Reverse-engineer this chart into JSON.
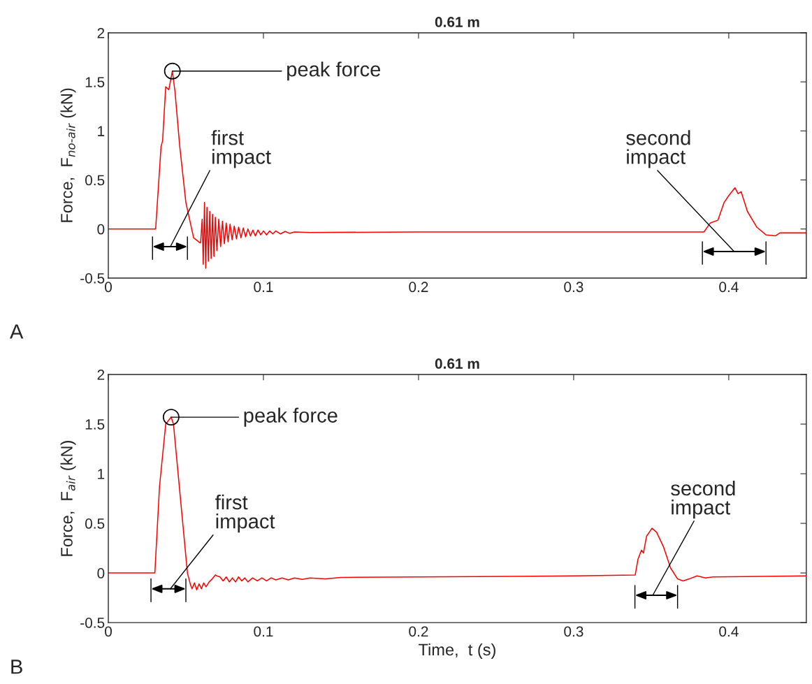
{
  "chart_data": [
    {
      "type": "line",
      "title": "0.61 m",
      "ylabel": "Force,  F$_{no‐air}$ (kN)",
      "xlim": [
        0,
        0.45
      ],
      "ylim": [
        -0.5,
        2
      ],
      "xticks": [
        0,
        0.1,
        0.2,
        0.3,
        0.4
      ],
      "yticks": [
        {
          "value": -0.5,
          "label": "-0.5"
        },
        0,
        0.5,
        1,
        1.5,
        2
      ],
      "grid": false,
      "marker": "none",
      "line_style": "solid",
      "series": [
        {
          "color": "#ff0000",
          "x": [
            0,
            0.0305,
            0.034,
            0.035,
            0.037,
            0.039,
            0.0413,
            0.043,
            0.046,
            0.05,
            0.055,
            0.059,
            0.0595,
            0.0605,
            0.0612,
            0.062,
            0.0628,
            0.0636,
            0.0645,
            0.0654,
            0.0663,
            0.0672,
            0.0681,
            0.069,
            0.07,
            0.0712,
            0.0724,
            0.0736,
            0.0748,
            0.076,
            0.0772,
            0.0785,
            0.0798,
            0.0812,
            0.0826,
            0.084,
            0.0855,
            0.087,
            0.0885,
            0.09,
            0.0916,
            0.0932,
            0.0948,
            0.0965,
            0.0982,
            0.1,
            0.102,
            0.104,
            0.106,
            0.108,
            0.111,
            0.114,
            0.117,
            0.12,
            0.13,
            0.2,
            0.3,
            0.384,
            0.388,
            0.393,
            0.397,
            0.4,
            0.404,
            0.406,
            0.408,
            0.412,
            0.418,
            0.424,
            0.43,
            0.433,
            0.45
          ],
          "values": [
            0,
            0,
            0.84,
            0.9,
            1.45,
            1.42,
            1.61,
            1.4,
            0.85,
            0.27,
            -0.09,
            -0.14,
            -0.14,
            0.1,
            -0.36,
            0.27,
            -0.4,
            0.22,
            -0.33,
            0.18,
            -0.3,
            0.15,
            -0.28,
            0.12,
            -0.22,
            0.1,
            -0.18,
            0.08,
            -0.15,
            0.06,
            -0.13,
            0.05,
            -0.11,
            0.03,
            -0.1,
            0.02,
            -0.09,
            0.01,
            -0.08,
            0,
            -0.07,
            -0.01,
            -0.07,
            -0.01,
            -0.06,
            -0.02,
            -0.06,
            -0.02,
            -0.05,
            -0.02,
            -0.05,
            -0.025,
            -0.045,
            -0.03,
            -0.035,
            -0.03,
            -0.03,
            -0.03,
            0.06,
            0.09,
            0.27,
            0.34,
            0.42,
            0.36,
            0.38,
            0.18,
            0.02,
            -0.06,
            -0.07,
            -0.04,
            -0.04
          ]
        }
      ],
      "annotations": [
        {
          "text": "peak force",
          "x": 0.0413,
          "y": 1.61
        },
        "first\nimpact",
        "second\nimpact",
        "A"
      ]
    },
    {
      "type": "line",
      "title": "0.61 m",
      "ylabel": "Force,  F$_{air}$ (kN)",
      "xlabel": "Time,  t (s)",
      "xlim": [
        0,
        0.45
      ],
      "ylim": [
        -0.5,
        2
      ],
      "xticks": [
        0,
        0.1,
        0.2,
        0.3,
        0.4
      ],
      "yticks": [
        {
          "value": -0.5,
          "label": "-0.5"
        },
        0,
        0.5,
        1,
        1.5,
        2
      ],
      "grid": false,
      "marker": "none",
      "line_style": "solid",
      "series": [
        {
          "color": "#ff0000",
          "x": [
            0,
            0.03,
            0.033,
            0.037,
            0.0405,
            0.042,
            0.051,
            0.053,
            0.054,
            0.0555,
            0.057,
            0.0585,
            0.06,
            0.0615,
            0.063,
            0.065,
            0.067,
            0.069,
            0.07,
            0.072,
            0.074,
            0.076,
            0.078,
            0.08,
            0.082,
            0.084,
            0.086,
            0.088,
            0.09,
            0.093,
            0.096,
            0.099,
            0.102,
            0.105,
            0.108,
            0.112,
            0.116,
            0.12,
            0.125,
            0.13,
            0.14,
            0.15,
            0.2,
            0.3,
            0.3397,
            0.3415,
            0.3437,
            0.345,
            0.347,
            0.3505,
            0.3535,
            0.358,
            0.3625,
            0.367,
            0.3705,
            0.3745,
            0.3795,
            0.385,
            0.39,
            0.45
          ],
          "values": [
            0,
            0,
            0.87,
            1.5,
            1.57,
            1.5,
            0,
            -0.12,
            -0.16,
            -0.1,
            -0.17,
            -0.11,
            -0.16,
            -0.1,
            -0.14,
            -0.09,
            -0.06,
            -0.02,
            -0.03,
            -0.04,
            -0.08,
            -0.04,
            -0.09,
            -0.05,
            -0.09,
            -0.04,
            -0.08,
            -0.05,
            -0.09,
            -0.05,
            -0.08,
            -0.05,
            -0.08,
            -0.05,
            -0.07,
            -0.05,
            -0.07,
            -0.05,
            -0.065,
            -0.05,
            -0.06,
            -0.045,
            -0.04,
            -0.03,
            -0.02,
            0.14,
            0.23,
            0.2,
            0.37,
            0.45,
            0.41,
            0.26,
            0.05,
            -0.06,
            -0.08,
            -0.06,
            -0.03,
            -0.05,
            -0.04,
            -0.03
          ]
        }
      ],
      "annotations": [
        {
          "text": "peak force",
          "x": 0.0405,
          "y": 1.57
        },
        "first\nimpact",
        "second\nimpact",
        "B"
      ]
    }
  ]
}
